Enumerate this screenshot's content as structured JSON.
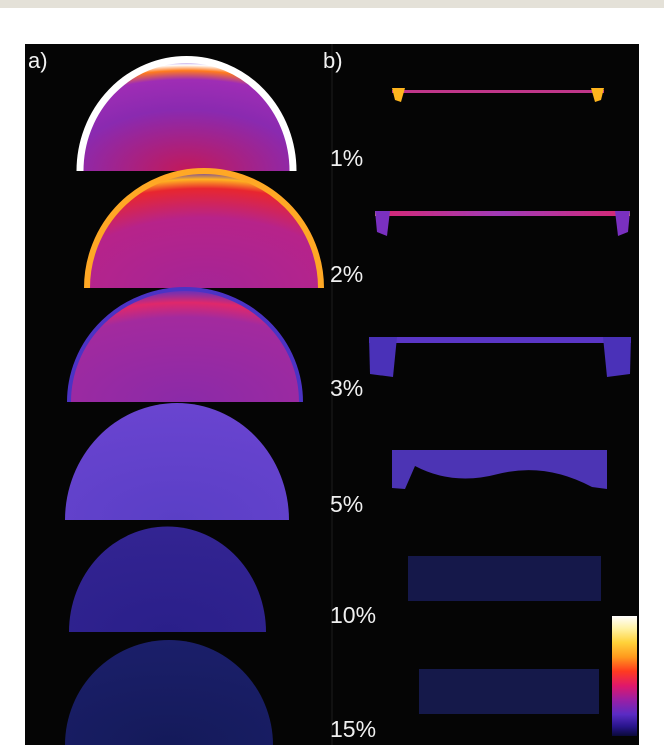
{
  "panels": {
    "a_label": "a)",
    "b_label": "b)"
  },
  "concentrations": [
    "1%",
    "2%",
    "3%",
    "5%",
    "10%",
    "15%"
  ],
  "colors": {
    "background": "#050505",
    "scale_high": "#ffffff",
    "scale_mid": "#e0186a",
    "scale_low": "#0a0a3a"
  }
}
